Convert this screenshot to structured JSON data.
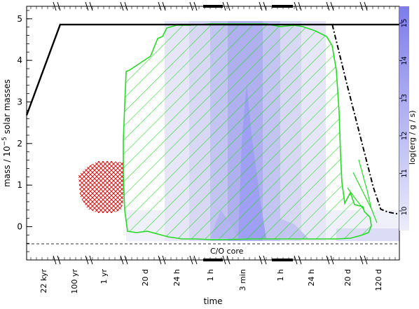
{
  "chart_data": {
    "type": "area",
    "title": "",
    "xlabel": "time",
    "ylabel": "mass / 10",
    "ylabel_exponent": "−5",
    "ylabel_suffix": "solar masses",
    "colorbar_label": "log(erg / g / s)",
    "colorbar_ticks": [
      "10",
      "11",
      "12",
      "13",
      "14",
      "15"
    ],
    "ylim": [
      -0.8,
      5.3
    ],
    "yticks": [
      0,
      1,
      2,
      3,
      4,
      5
    ],
    "x_tick_labels": [
      "22 kyr",
      "100 yr",
      "1 yr",
      "20 d",
      "24 h",
      "1 h",
      "3 min",
      "1 h",
      "24 h",
      "20 d",
      "120 d"
    ],
    "core_label": "C/O core",
    "core_line_mass": 0.0,
    "colors": {
      "convective_hatch": "#22dd22",
      "red_hatch": "#dd1111",
      "energy_shading": "#9f9ff5",
      "colorbar_top": "#7d7dea",
      "colorbar_bottom": "#ececfa"
    },
    "series": [
      {
        "name": "",
        "kind": "total mass (solid)",
        "x": [
          0.0,
          0.09,
          1.0
        ],
        "y": [
          2.68,
          4.86,
          4.86
        ]
      },
      {
        "name": "",
        "kind": "dash-dot boundary",
        "x": [
          0.82,
          0.86,
          0.9,
          0.93,
          0.95,
          0.97,
          1.0
        ],
        "y": [
          4.86,
          3.4,
          2.0,
          0.95,
          0.42,
          0.35,
          0.3
        ]
      }
    ]
  }
}
